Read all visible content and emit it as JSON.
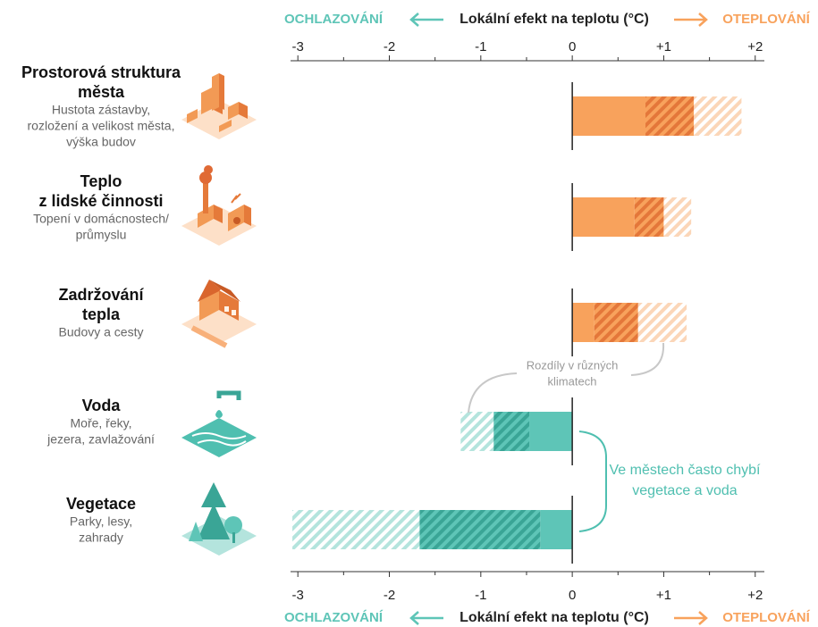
{
  "chart_data": {
    "type": "range-bar",
    "axis_title": "Lokální efekt na teplotu (°C)",
    "cooling_label": "OCHLAZOVÁNÍ",
    "warming_label": "OTEPLOVÁNÍ",
    "xlim": [
      -3.08,
      2.1
    ],
    "xticks": [
      -3,
      -2,
      -1,
      0,
      {
        "value": 1,
        "label": "+1"
      },
      {
        "value": 2,
        "label": "+2"
      }
    ],
    "xminorticks": [
      -2.5,
      -1.5,
      -0.5,
      0.5,
      1.5
    ],
    "colors": {
      "positive": {
        "solid": "#f8a25c",
        "dark": "#e4773a",
        "light": "#fbd6b8"
      },
      "negative": {
        "solid": "#5ec5b7",
        "dark": "#3aa596",
        "light": "#b4e4dd"
      }
    },
    "categories": [
      {
        "title": [
          "Prostorová struktura",
          "města"
        ],
        "subtitle": [
          "Hustota zástavby,",
          "rozložení a velikost města,",
          "výška budov"
        ]
      },
      {
        "title": [
          "Teplo",
          "z lidské činnosti"
        ],
        "subtitle": [
          "Topení v domácnostech/",
          "průmyslu"
        ]
      },
      {
        "title": [
          "Zadržování",
          "tepla"
        ],
        "subtitle": [
          "Budovy a cesty"
        ]
      },
      {
        "title": [
          "Voda"
        ],
        "subtitle": [
          "Moře, řeky,",
          "jezera, zavlažování"
        ]
      },
      {
        "title": [
          "Vegetace"
        ],
        "subtitle": [
          "Parky, lesy,",
          "zahrady"
        ]
      }
    ],
    "segments": [
      {
        "fill": "solid",
        "values": [
          0.8,
          0.68,
          0.24,
          -0.47,
          -0.35
        ]
      },
      {
        "fill": "dark",
        "values": [
          0.53,
          0.32,
          0.48,
          -0.39,
          -1.32
        ]
      },
      {
        "fill": "light",
        "values": [
          0.52,
          0.3,
          0.53,
          -0.36,
          -1.39
        ]
      }
    ],
    "annotations": [
      {
        "text": [
          "Rozdíly v různých",
          "klimatech"
        ],
        "color": "#999999"
      },
      {
        "text": [
          "Ve městech často chybí",
          "vegetace a voda"
        ],
        "color": "#4fbfb0"
      }
    ]
  }
}
